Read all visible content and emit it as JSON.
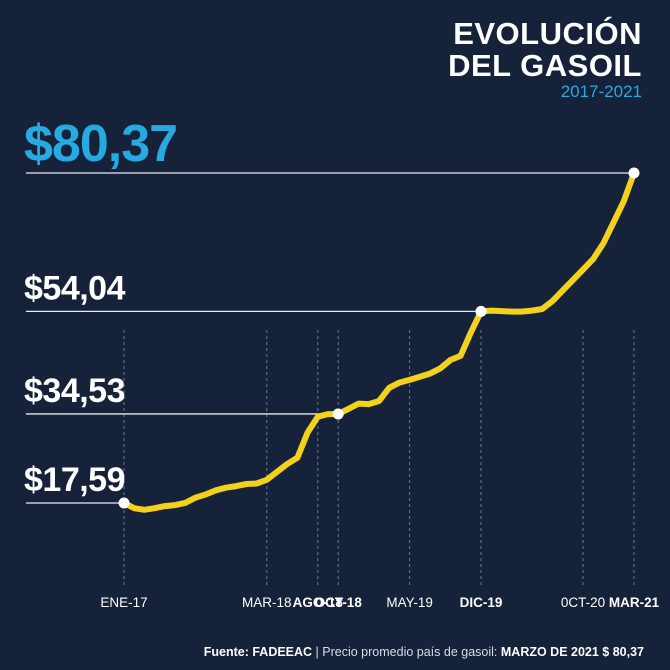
{
  "title_line1": "EVOLUCIÓN",
  "title_line2": "DEL GASOIL",
  "subtitle": "2017-2021",
  "footer": {
    "source_label": "Fuente:",
    "source": "FADEEAC",
    "separator": " | ",
    "description": "Precio promedio país de gasoil:",
    "highlight": "MARZO DE 2021 $ 80,37"
  },
  "colors": {
    "background": "#15223a",
    "line": "#f2d21b",
    "accent": "#27a9e1",
    "text": "#ffffff"
  },
  "chart_data": {
    "type": "line",
    "title": "EVOLUCIÓN DEL GASOIL",
    "subtitle": "2017-2021",
    "x_tick_labels": [
      {
        "label": "ENE-17",
        "month": 0,
        "bold": false
      },
      {
        "label": "AGO-18",
        "month": 19,
        "bold": true
      },
      {
        "label": "MAR-18",
        "month": 14,
        "bold": false
      },
      {
        "label": "OCT-18",
        "month": 21,
        "bold": true
      },
      {
        "label": "MAY-19",
        "month": 28,
        "bold": false
      },
      {
        "label": "DIC-19",
        "month": 35,
        "bold": true
      },
      {
        "label": "0CT-20",
        "month": 45,
        "bold": false
      },
      {
        "label": "MAR-21",
        "month": 50,
        "bold": true
      }
    ],
    "highlighted_values": [
      {
        "label": "$17,59",
        "value": 17.59,
        "month": 0,
        "accent": false
      },
      {
        "label": "$34,53",
        "value": 34.53,
        "month": 21,
        "accent": false
      },
      {
        "label": "$54,04",
        "value": 54.04,
        "month": 35,
        "accent": false
      },
      {
        "label": "$80,37",
        "value": 80.37,
        "month": 50,
        "accent": true
      }
    ],
    "series": [
      {
        "x": [
          0,
          1,
          2,
          3,
          4,
          5,
          6,
          7,
          8,
          9,
          10,
          11,
          12,
          13,
          14,
          15,
          16,
          17,
          18,
          19,
          20,
          21,
          22,
          23,
          24,
          25,
          26,
          27,
          28,
          29,
          30,
          31,
          32,
          33,
          34,
          35,
          36,
          37,
          38,
          39,
          40,
          41,
          42,
          43,
          44,
          45,
          46,
          47,
          48,
          49,
          50
        ],
        "values": [
          17.59,
          16.6,
          16.3,
          16.6,
          17.0,
          17.2,
          17.6,
          18.6,
          19.2,
          20.0,
          20.5,
          20.8,
          21.2,
          21.3,
          22.0,
          23.5,
          25.0,
          26.2,
          31.0,
          34.0,
          34.5,
          34.53,
          35.5,
          36.5,
          36.4,
          37.0,
          39.5,
          40.5,
          41.0,
          41.6,
          42.2,
          43.2,
          44.8,
          45.6,
          50.0,
          54.04,
          54.2,
          54.1,
          54.0,
          54.0,
          54.2,
          54.5,
          56.0,
          58.0,
          60.0,
          62.0,
          64.0,
          67.0,
          71.0,
          75.0,
          80.37
        ]
      }
    ]
  }
}
